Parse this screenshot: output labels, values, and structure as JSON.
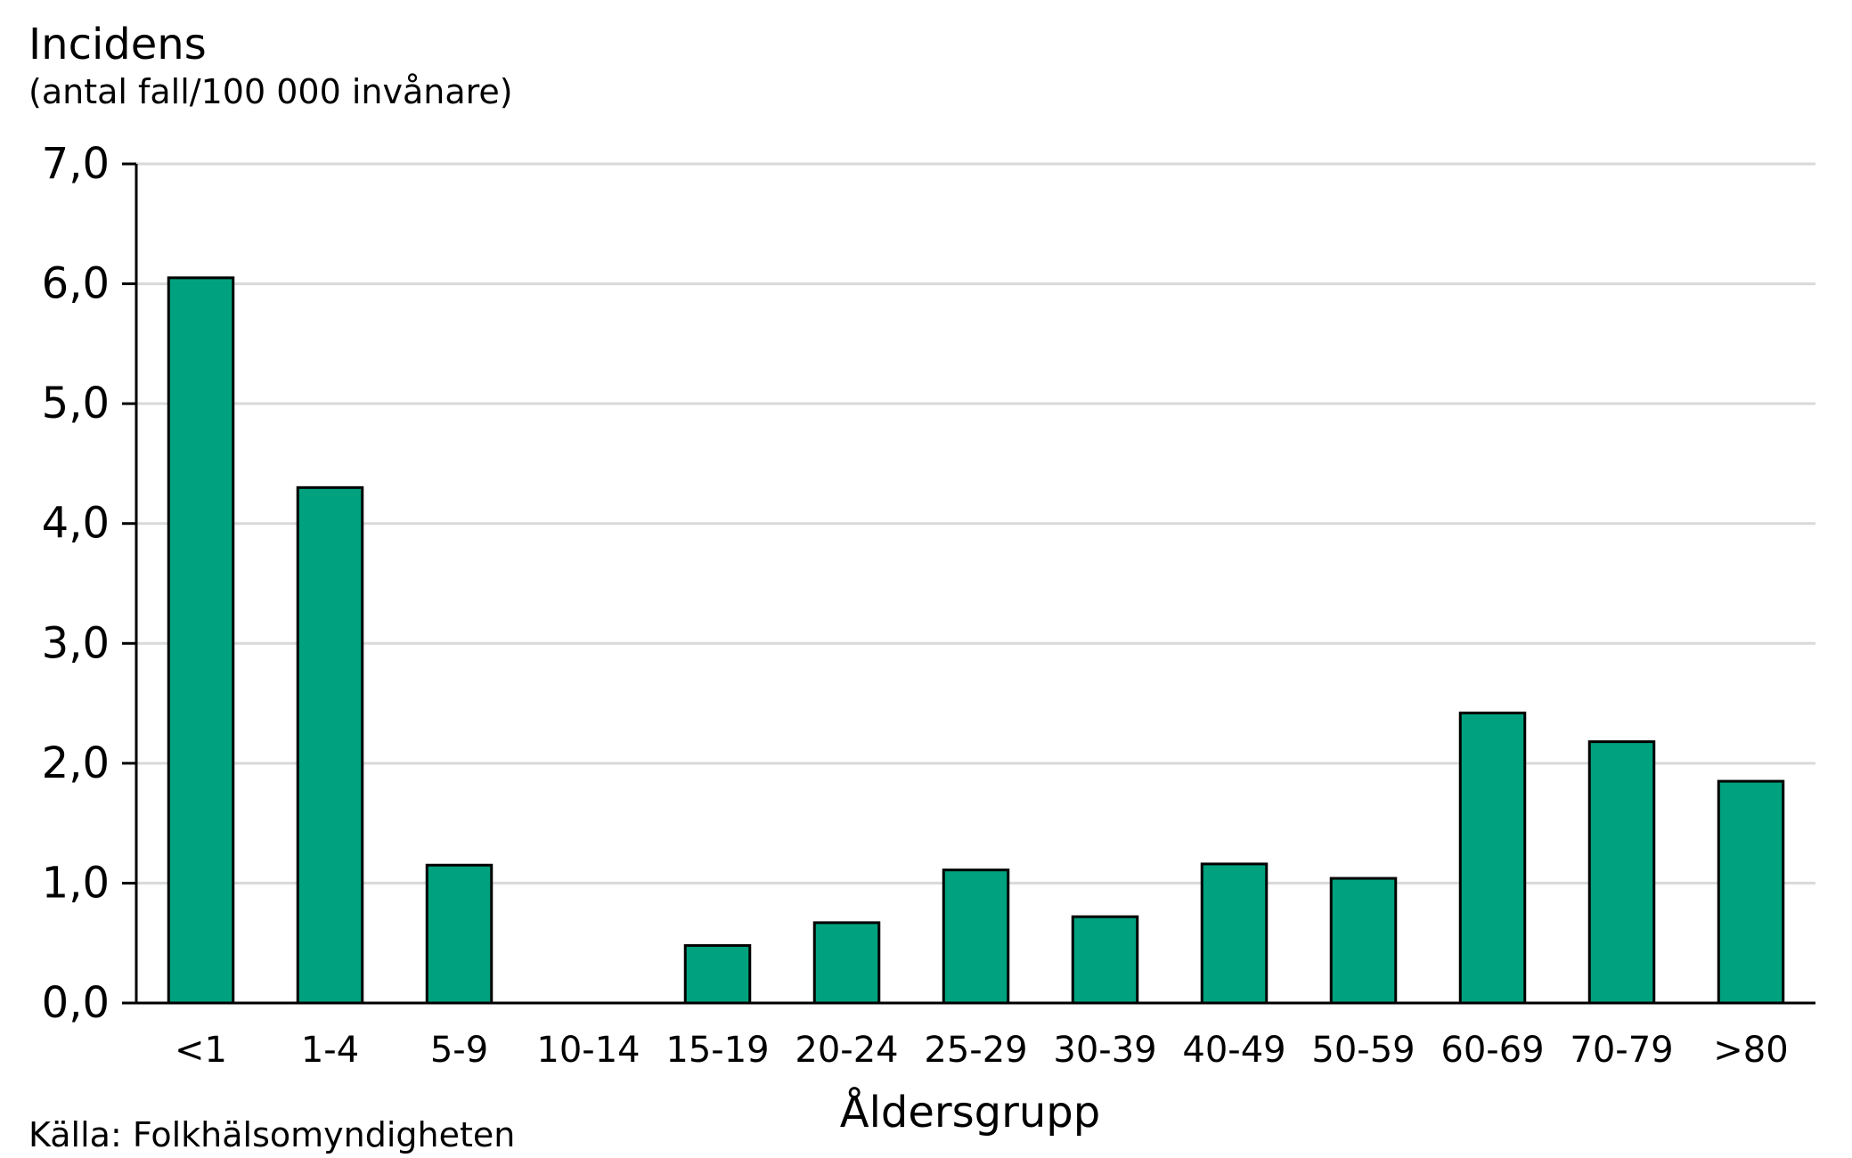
{
  "chart_data": {
    "type": "bar",
    "title": "",
    "ylabel": "Incidens",
    "ylabel_sub": "(antal fall/100 000 invånare)",
    "xlabel": "Åldersgrupp",
    "source": "Källa: Folkhälsomyndigheten",
    "categories": [
      "<1",
      "1-4",
      "5-9",
      "10-14",
      "15-19",
      "20-24",
      "25-29",
      "30-39",
      "40-49",
      "50-59",
      "60-69",
      "70-79",
      ">80"
    ],
    "values": [
      6.05,
      4.3,
      1.15,
      0.0,
      0.48,
      0.67,
      1.11,
      0.72,
      1.16,
      1.04,
      2.42,
      2.18,
      1.85
    ],
    "ylim": [
      0,
      7
    ],
    "yticks": [
      0,
      1,
      2,
      3,
      4,
      5,
      6,
      7
    ],
    "ytick_labels": [
      "0,0",
      "1,0",
      "2,0",
      "3,0",
      "4,0",
      "5,0",
      "6,0",
      "7,0"
    ],
    "grid": true,
    "bar_color": "#00a17e",
    "bar_edge_color": "#000000",
    "grid_color": "#d9d9d9"
  }
}
